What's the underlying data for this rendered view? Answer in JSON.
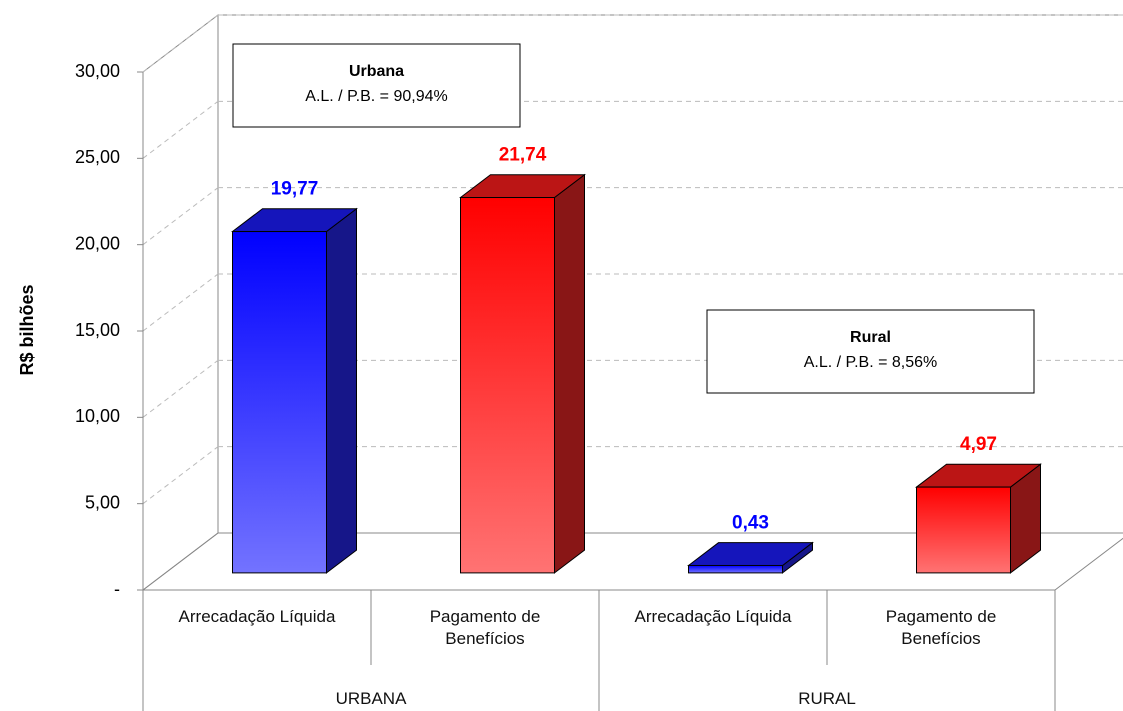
{
  "chart_data": {
    "type": "bar3d",
    "y_label": "R$ bilhões",
    "categories": [
      "Arrecadação Líquida",
      "Pagamento de Benefícios",
      "Arrecadação Líquida",
      "Pagamento de Benefícios"
    ],
    "groups": [
      "URBANA",
      "RURAL"
    ],
    "values": [
      19.77,
      21.74,
      0.43,
      4.97
    ],
    "value_labels": [
      "19,77",
      "21,74",
      "0,43",
      "4,97"
    ],
    "colors": [
      "#0000ff",
      "#ff0000",
      "#0000ff",
      "#ff0000"
    ],
    "ylim": [
      0,
      30
    ],
    "yticks": [
      {
        "value": 0,
        "label": "-"
      },
      {
        "value": 5,
        "label": "5,00"
      },
      {
        "value": 10,
        "label": "10,00"
      },
      {
        "value": 15,
        "label": "15,00"
      },
      {
        "value": 20,
        "label": "20,00"
      },
      {
        "value": 25,
        "label": "25,00"
      },
      {
        "value": 30,
        "label": "30,00"
      }
    ],
    "grid": true,
    "annotations": [
      {
        "title": "Urbana",
        "text": "A.L. / P.B. = 90,94%"
      },
      {
        "title": "Rural",
        "text": "A.L. / P.B. = 8,56%"
      }
    ]
  }
}
